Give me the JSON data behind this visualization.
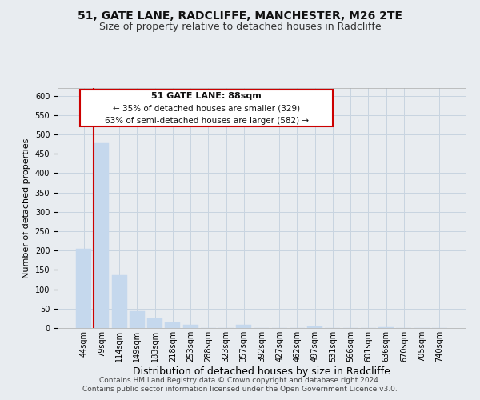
{
  "title1": "51, GATE LANE, RADCLIFFE, MANCHESTER, M26 2TE",
  "title2": "Size of property relative to detached houses in Radcliffe",
  "xlabel": "Distribution of detached houses by size in Radcliffe",
  "ylabel": "Number of detached properties",
  "bar_labels": [
    "44sqm",
    "79sqm",
    "114sqm",
    "149sqm",
    "183sqm",
    "218sqm",
    "253sqm",
    "288sqm",
    "323sqm",
    "357sqm",
    "392sqm",
    "427sqm",
    "462sqm",
    "497sqm",
    "531sqm",
    "566sqm",
    "601sqm",
    "636sqm",
    "670sqm",
    "705sqm",
    "740sqm"
  ],
  "bar_values": [
    204,
    478,
    136,
    43,
    24,
    14,
    9,
    0,
    0,
    8,
    0,
    0,
    0,
    4,
    0,
    0,
    0,
    2,
    0,
    0,
    1
  ],
  "bar_color": "#c5d8ed",
  "highlight_color": "#cc0000",
  "highlight_bar_index": 1,
  "ylim": [
    0,
    620
  ],
  "yticks": [
    0,
    50,
    100,
    150,
    200,
    250,
    300,
    350,
    400,
    450,
    500,
    550,
    600
  ],
  "annotation_title": "51 GATE LANE: 88sqm",
  "annotation_line1": "← 35% of detached houses are smaller (329)",
  "annotation_line2": "63% of semi-detached houses are larger (582) →",
  "annotation_box_facecolor": "#ffffff",
  "annotation_box_edgecolor": "#cc0000",
  "footer1": "Contains HM Land Registry data © Crown copyright and database right 2024.",
  "footer2": "Contains public sector information licensed under the Open Government Licence v3.0.",
  "fig_facecolor": "#e8ecf0",
  "plot_facecolor": "#e8ecf0",
  "grid_color": "#c8d4e0",
  "title1_fontsize": 10,
  "title2_fontsize": 9,
  "xlabel_fontsize": 9,
  "ylabel_fontsize": 8,
  "tick_fontsize": 7,
  "footer_fontsize": 6.5
}
